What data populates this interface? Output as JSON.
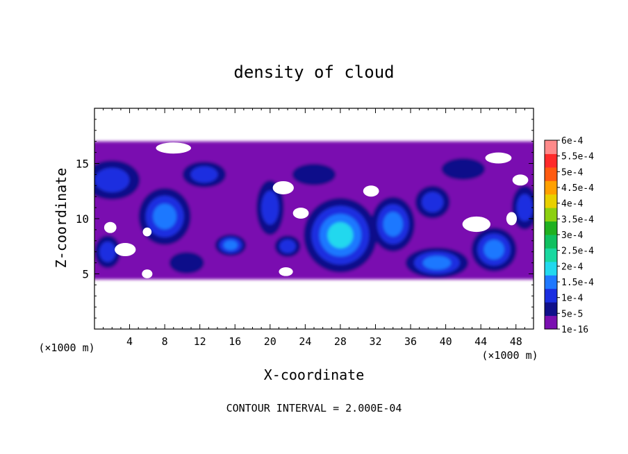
{
  "chart_data": {
    "type": "heatmap",
    "title": "density of cloud",
    "xlabel": "X-coordinate",
    "ylabel": "Z-coordinate",
    "x_unit_left": "(×1000 m)",
    "x_unit_right": "(×1000 m)",
    "footer": "CONTOUR INTERVAL = 2.000E-04",
    "xlim": [
      0,
      50
    ],
    "ylim": [
      0,
      20
    ],
    "xticks": [
      "4",
      "8",
      "12",
      "16",
      "20",
      "24",
      "28",
      "32",
      "36",
      "40",
      "44",
      "48"
    ],
    "yticks": [
      "5",
      "10",
      "15"
    ],
    "colorbar": {
      "labels": [
        "1e-16",
        "5e-5",
        "1e-4",
        "1.5e-4",
        "2e-4",
        "2.5e-4",
        "3e-4",
        "3.5e-4",
        "4e-4",
        "4.5e-4",
        "5e-4",
        "5.5e-4",
        "6e-4"
      ],
      "colors": [
        "#7a10b0",
        "#10108a",
        "#1a2ee0",
        "#1f78ff",
        "#22d8ee",
        "#19d8a0",
        "#10c060",
        "#20b020",
        "#8cd010",
        "#e8d000",
        "#ffa000",
        "#ff5a10",
        "#ff2a2a",
        "#ff8a8a"
      ]
    },
    "cloud_layer": {
      "z_bottom": 4.5,
      "z_top": 17
    },
    "blobs": [
      {
        "x": 28.0,
        "z": 8.5,
        "rx": 4.2,
        "rz": 3.4,
        "level": 4
      },
      {
        "x": 8.0,
        "z": 10.2,
        "rx": 3.0,
        "rz": 2.6,
        "level": 3
      },
      {
        "x": 45.5,
        "z": 7.2,
        "rx": 2.6,
        "rz": 2.0,
        "level": 3
      },
      {
        "x": 39.0,
        "z": 6.0,
        "rx": 3.6,
        "rz": 1.4,
        "level": 3
      },
      {
        "x": 15.5,
        "z": 7.6,
        "rx": 1.8,
        "rz": 1.0,
        "level": 3
      },
      {
        "x": 34.0,
        "z": 9.5,
        "rx": 2.5,
        "rz": 2.5,
        "level": 3
      },
      {
        "x": 2.0,
        "z": 13.5,
        "rx": 3.2,
        "rz": 1.8,
        "level": 2
      },
      {
        "x": 12.5,
        "z": 14.0,
        "rx": 2.5,
        "rz": 1.2,
        "level": 2
      },
      {
        "x": 20.0,
        "z": 11.0,
        "rx": 1.6,
        "rz": 2.5,
        "level": 2
      },
      {
        "x": 38.5,
        "z": 11.5,
        "rx": 2.0,
        "rz": 1.5,
        "level": 2
      },
      {
        "x": 49.0,
        "z": 11.0,
        "rx": 1.5,
        "rz": 2.0,
        "level": 2
      },
      {
        "x": 1.5,
        "z": 7.0,
        "rx": 1.5,
        "rz": 1.5,
        "level": 2
      },
      {
        "x": 22.0,
        "z": 7.5,
        "rx": 1.5,
        "rz": 1.0,
        "level": 2
      },
      {
        "x": 10.5,
        "z": 6.0,
        "rx": 2.0,
        "rz": 1.0,
        "level": 1
      },
      {
        "x": 25.0,
        "z": 14.0,
        "rx": 2.5,
        "rz": 1.0,
        "level": 1
      },
      {
        "x": 42.0,
        "z": 14.5,
        "rx": 2.5,
        "rz": 1.0,
        "level": 1
      }
    ],
    "holes": [
      {
        "x": 3.5,
        "z": 7.2,
        "rx": 1.2,
        "rz": 0.6
      },
      {
        "x": 1.8,
        "z": 9.2,
        "rx": 0.7,
        "rz": 0.5
      },
      {
        "x": 6.0,
        "z": 5.0,
        "rx": 0.6,
        "rz": 0.4
      },
      {
        "x": 21.5,
        "z": 12.8,
        "rx": 1.2,
        "rz": 0.6
      },
      {
        "x": 23.5,
        "z": 10.5,
        "rx": 0.9,
        "rz": 0.5
      },
      {
        "x": 21.8,
        "z": 5.2,
        "rx": 0.8,
        "rz": 0.4
      },
      {
        "x": 43.5,
        "z": 9.5,
        "rx": 1.6,
        "rz": 0.7
      },
      {
        "x": 31.5,
        "z": 12.5,
        "rx": 0.9,
        "rz": 0.5
      },
      {
        "x": 46.0,
        "z": 15.5,
        "rx": 1.5,
        "rz": 0.5
      },
      {
        "x": 48.5,
        "z": 13.5,
        "rx": 0.9,
        "rz": 0.5
      },
      {
        "x": 47.5,
        "z": 10.0,
        "rx": 0.6,
        "rz": 0.6
      },
      {
        "x": 9.0,
        "z": 16.4,
        "rx": 2.0,
        "rz": 0.5
      },
      {
        "x": 6.0,
        "z": 8.8,
        "rx": 0.5,
        "rz": 0.4
      }
    ]
  }
}
